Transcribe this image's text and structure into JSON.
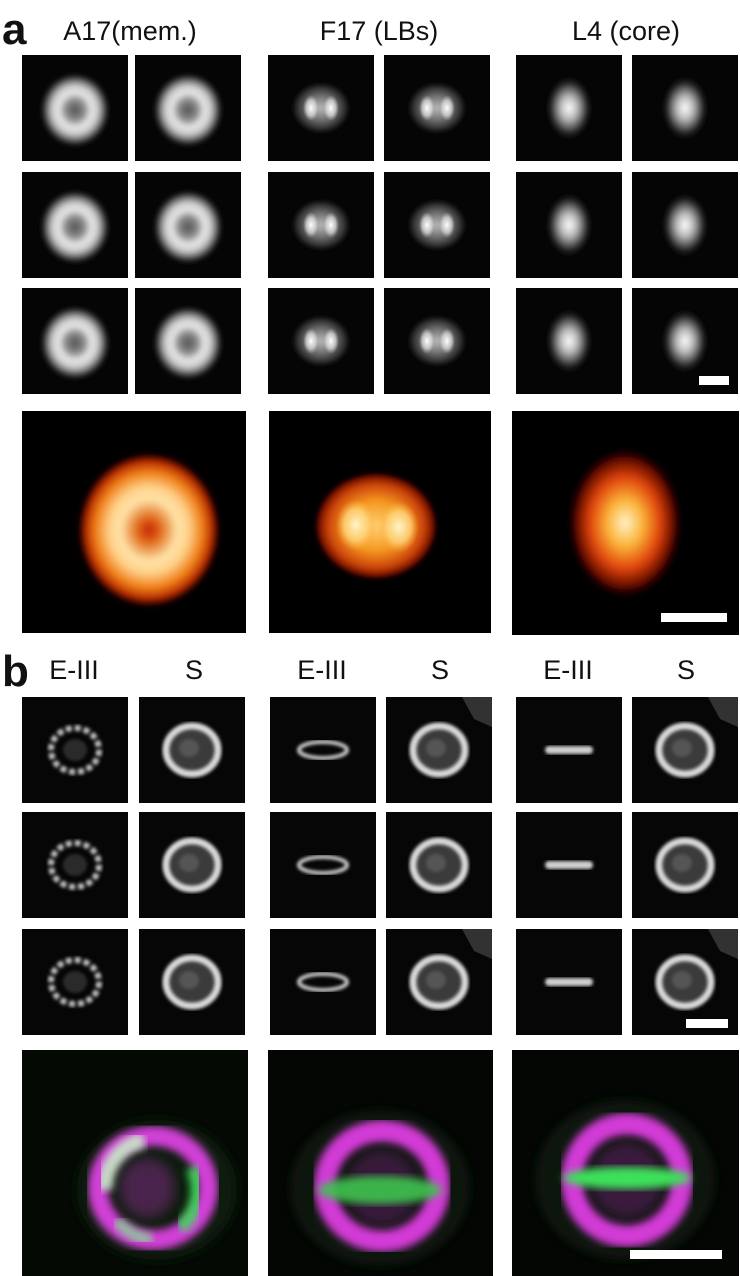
{
  "panel_a": {
    "letter": "a",
    "columns": [
      "A17(mem.)",
      "F17 (LBs)",
      "L4 (core)"
    ]
  },
  "panel_b": {
    "letter": "b",
    "subcolumn_labels": [
      "E-III",
      "S",
      "E-III",
      "S",
      "E-III",
      "S"
    ]
  },
  "colors": {
    "background": "#000000",
    "heat_core": "#fff2c0",
    "heat_mid": "#f28a12",
    "heat_edge": "#9a1500",
    "merge_magenta": "#d53ad8",
    "merge_green": "#37d15a",
    "scalebar": "#ffffff"
  }
}
